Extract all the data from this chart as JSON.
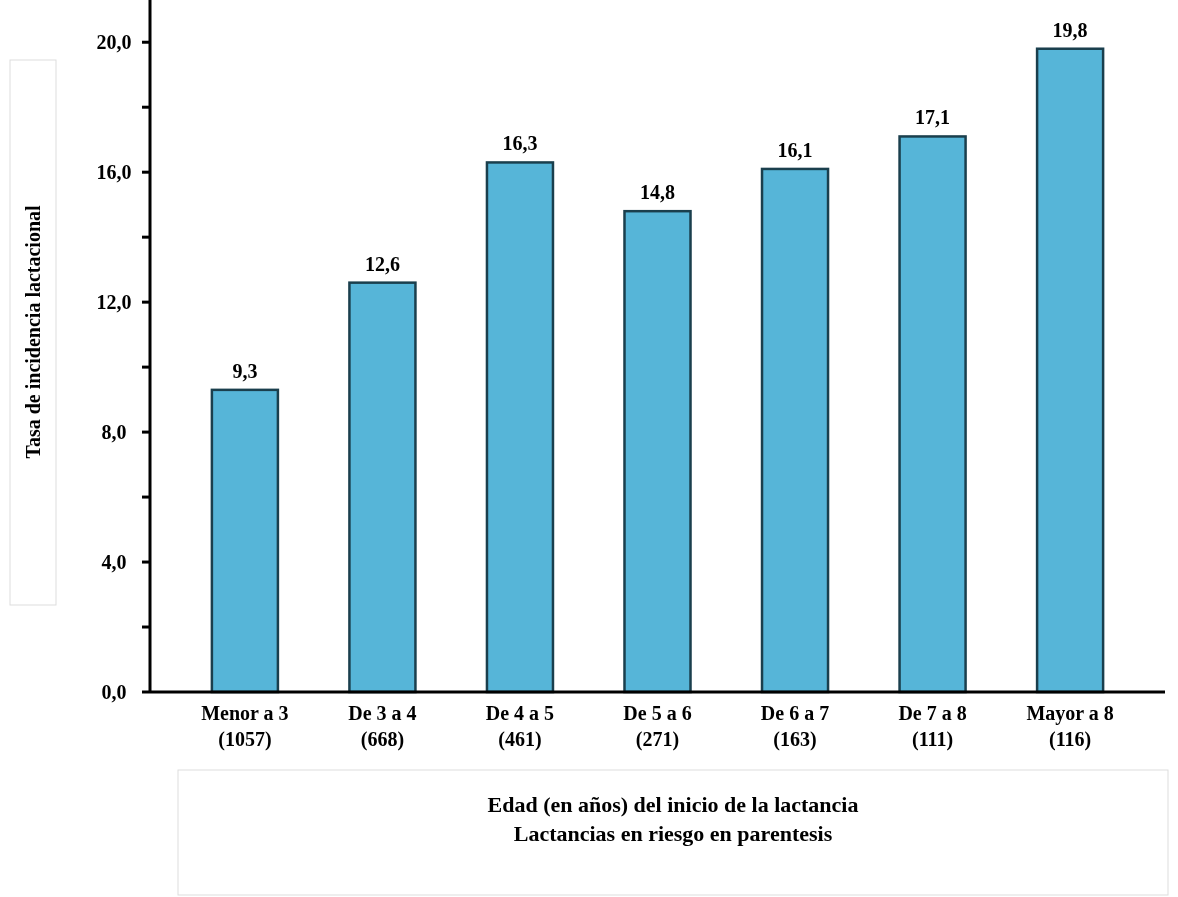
{
  "chart_data": {
    "type": "bar",
    "ylabel": "Tasa de incidencia lactacional",
    "xlabel": "Edad (en años) del inicio de la lactancia\nLactancias en riesgo en parentesis",
    "categories": [
      "Menor a 3\n(1057)",
      "De 3 a 4\n(668)",
      "De 4 a 5\n(461)",
      "De 5 a 6\n(271)",
      "De 6 a 7\n(163)",
      "De 7 a 8\n(111)",
      "Mayor a 8\n(116)"
    ],
    "values": [
      9.3,
      12.6,
      16.3,
      14.8,
      16.1,
      17.1,
      19.8
    ],
    "value_labels": [
      "9,3",
      "12,6",
      "16,3",
      "14,8",
      "16,1",
      "17,1",
      "19,8"
    ],
    "color": "#56b5d8",
    "ylim": [
      0,
      21.3
    ],
    "yticks": [
      {
        "value": 0,
        "label": "0,0"
      },
      {
        "value": 2,
        "label": null
      },
      {
        "value": 4,
        "label": "4,0"
      },
      {
        "value": 6,
        "label": null
      },
      {
        "value": 8,
        "label": "8,0"
      },
      {
        "value": 10,
        "label": null
      },
      {
        "value": 12,
        "label": "12,0"
      },
      {
        "value": 14,
        "label": null
      },
      {
        "value": 16,
        "label": "16,0"
      },
      {
        "value": 18,
        "label": null
      },
      {
        "value": 20,
        "label": "20,0"
      }
    ],
    "grid": false
  }
}
